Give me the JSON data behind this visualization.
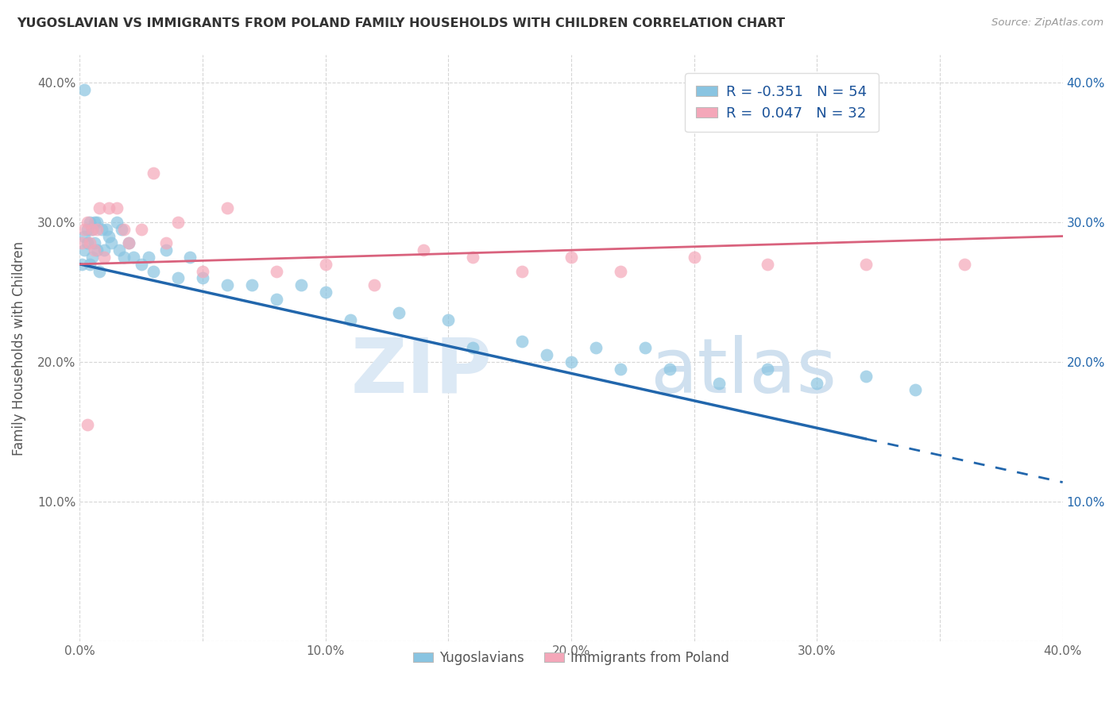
{
  "title": "YUGOSLAVIAN VS IMMIGRANTS FROM POLAND FAMILY HOUSEHOLDS WITH CHILDREN CORRELATION CHART",
  "source": "Source: ZipAtlas.com",
  "ylabel": "Family Households with Children",
  "xlim": [
    0.0,
    0.4
  ],
  "ylim": [
    0.0,
    0.42
  ],
  "xtick_labels": [
    "0.0%",
    "",
    "10.0%",
    "",
    "20.0%",
    "",
    "30.0%",
    "",
    "40.0%"
  ],
  "xtick_vals": [
    0.0,
    0.05,
    0.1,
    0.15,
    0.2,
    0.25,
    0.3,
    0.35,
    0.4
  ],
  "ytick_vals": [
    0.0,
    0.1,
    0.2,
    0.3,
    0.4
  ],
  "ytick_labels_left": [
    "",
    "10.0%",
    "20.0%",
    "30.0%",
    "40.0%"
  ],
  "ytick_labels_right": [
    "",
    "10.0%",
    "20.0%",
    "30.0%",
    "40.0%"
  ],
  "legend_label1": "Yugoslavians",
  "legend_label2": "Immigrants from Poland",
  "R1": -0.351,
  "N1": 54,
  "R2": 0.047,
  "N2": 32,
  "color1": "#89c4e1",
  "color2": "#f4a7b9",
  "line_color1": "#2166ac",
  "line_color2": "#d9627d",
  "background_color": "#ffffff",
  "grid_color": "#cccccc",
  "yug_x": [
    0.001,
    0.002,
    0.002,
    0.003,
    0.003,
    0.004,
    0.004,
    0.005,
    0.005,
    0.006,
    0.006,
    0.007,
    0.007,
    0.008,
    0.009,
    0.01,
    0.011,
    0.012,
    0.013,
    0.015,
    0.016,
    0.017,
    0.018,
    0.02,
    0.022,
    0.025,
    0.028,
    0.03,
    0.035,
    0.04,
    0.045,
    0.05,
    0.06,
    0.07,
    0.08,
    0.09,
    0.1,
    0.11,
    0.13,
    0.15,
    0.16,
    0.18,
    0.19,
    0.2,
    0.21,
    0.22,
    0.23,
    0.24,
    0.26,
    0.28,
    0.3,
    0.32,
    0.34,
    0.002
  ],
  "yug_y": [
    0.27,
    0.28,
    0.29,
    0.295,
    0.285,
    0.3,
    0.27,
    0.295,
    0.275,
    0.3,
    0.285,
    0.28,
    0.3,
    0.265,
    0.295,
    0.28,
    0.295,
    0.29,
    0.285,
    0.3,
    0.28,
    0.295,
    0.275,
    0.285,
    0.275,
    0.27,
    0.275,
    0.265,
    0.28,
    0.26,
    0.275,
    0.26,
    0.255,
    0.255,
    0.245,
    0.255,
    0.25,
    0.23,
    0.235,
    0.23,
    0.21,
    0.215,
    0.205,
    0.2,
    0.21,
    0.195,
    0.21,
    0.195,
    0.185,
    0.195,
    0.185,
    0.19,
    0.18,
    0.395
  ],
  "pol_x": [
    0.001,
    0.002,
    0.003,
    0.004,
    0.005,
    0.006,
    0.007,
    0.008,
    0.01,
    0.012,
    0.015,
    0.018,
    0.02,
    0.025,
    0.03,
    0.035,
    0.04,
    0.05,
    0.06,
    0.08,
    0.1,
    0.12,
    0.14,
    0.16,
    0.18,
    0.2,
    0.22,
    0.25,
    0.28,
    0.32,
    0.36,
    0.003
  ],
  "pol_y": [
    0.285,
    0.295,
    0.3,
    0.285,
    0.295,
    0.28,
    0.295,
    0.31,
    0.275,
    0.31,
    0.31,
    0.295,
    0.285,
    0.295,
    0.335,
    0.285,
    0.3,
    0.265,
    0.31,
    0.265,
    0.27,
    0.255,
    0.28,
    0.275,
    0.265,
    0.275,
    0.265,
    0.275,
    0.27,
    0.27,
    0.27,
    0.155
  ],
  "line1_x0": 0.0,
  "line1_y0": 0.27,
  "line1_x1": 0.32,
  "line1_y1": 0.145,
  "line1_dash_x0": 0.32,
  "line1_dash_y0": 0.145,
  "line1_dash_x1": 0.4,
  "line1_dash_y1": 0.114,
  "line2_x0": 0.0,
  "line2_y0": 0.27,
  "line2_x1": 0.4,
  "line2_y1": 0.29
}
